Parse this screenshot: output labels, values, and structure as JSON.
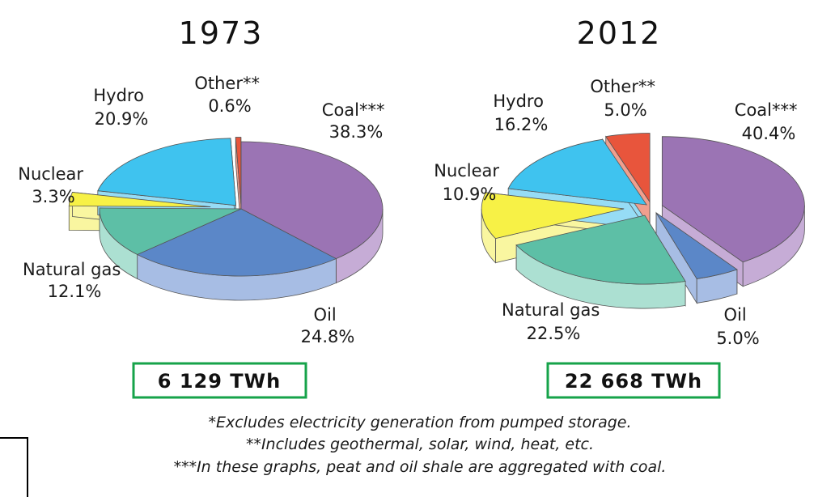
{
  "chart_data": [
    {
      "type": "pie",
      "title": "1973",
      "slices": [
        {
          "name": "Coal***",
          "value": 38.3,
          "label": "38.3%",
          "color": "#9b74b4",
          "side_color": "#c6acd6"
        },
        {
          "name": "Oil",
          "value": 24.8,
          "label": "24.8%",
          "color": "#5b87c8",
          "side_color": "#a7bde4"
        },
        {
          "name": "Natural gas",
          "value": 12.1,
          "label": "12.1%",
          "color": "#5dbfa6",
          "side_color": "#ace0d2"
        },
        {
          "name": "Nuclear",
          "value": 3.3,
          "label": "3.3%",
          "color": "#f7f146",
          "side_color": "#f9f6a0"
        },
        {
          "name": "Hydro",
          "value": 20.9,
          "label": "20.9%",
          "color": "#3fc3ef",
          "side_color": "#96dcf5"
        },
        {
          "name": "Other**",
          "value": 0.6,
          "label": "0.6%",
          "color": "#e8553c",
          "side_color": "#f19f8e"
        }
      ],
      "total": "6 129 TWh"
    },
    {
      "type": "pie",
      "title": "2012",
      "slices": [
        {
          "name": "Coal***",
          "value": 40.4,
          "label": "40.4%",
          "color": "#9b74b4",
          "side_color": "#c6acd6"
        },
        {
          "name": "Oil",
          "value": 5.0,
          "label": "5.0%",
          "color": "#5b87c8",
          "side_color": "#a7bde4"
        },
        {
          "name": "Natural gas",
          "value": 22.5,
          "label": "22.5%",
          "color": "#5dbfa6",
          "side_color": "#ace0d2"
        },
        {
          "name": "Nuclear",
          "value": 10.9,
          "label": "10.9%",
          "color": "#f7f146",
          "side_color": "#f9f6a0"
        },
        {
          "name": "Hydro",
          "value": 16.2,
          "label": "16.2%",
          "color": "#3fc3ef",
          "side_color": "#96dcf5"
        },
        {
          "name": "Other**",
          "value": 5.0,
          "label": "5.0%",
          "color": "#e8553c",
          "side_color": "#f19f8e"
        }
      ],
      "total": "22 668 TWh"
    }
  ],
  "footnotes": [
    "*Excludes electricity generation from pumped storage.",
    "**Includes geothermal, solar, wind, heat, etc.",
    "***In these graphs, peat and oil shale are aggregated with coal."
  ],
  "box_color": "#16a34a"
}
